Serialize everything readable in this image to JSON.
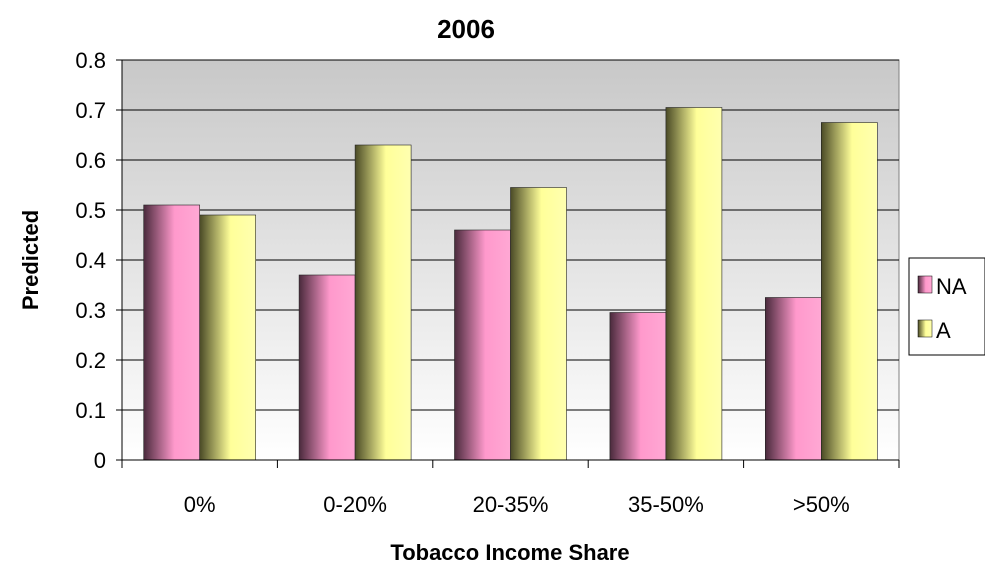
{
  "chart_data": {
    "type": "bar",
    "title": "2006",
    "xlabel": "Tobacco Income Share",
    "ylabel": "Predicted",
    "categories": [
      "0%",
      "0-20%",
      "20-35%",
      "35-50%",
      ">50%"
    ],
    "series": [
      {
        "name": "NA",
        "values": [
          0.51,
          0.37,
          0.46,
          0.295,
          0.325
        ],
        "color": "#ff99cc"
      },
      {
        "name": "A",
        "values": [
          0.49,
          0.63,
          0.545,
          0.705,
          0.675
        ],
        "color": "#ffff99"
      }
    ],
    "ylim": [
      0,
      0.8
    ],
    "yticks": [
      "0",
      "0.1",
      "0.2",
      "0.3",
      "0.4",
      "0.5",
      "0.6",
      "0.7",
      "0.8"
    ],
    "grid": true,
    "legend": "right"
  }
}
